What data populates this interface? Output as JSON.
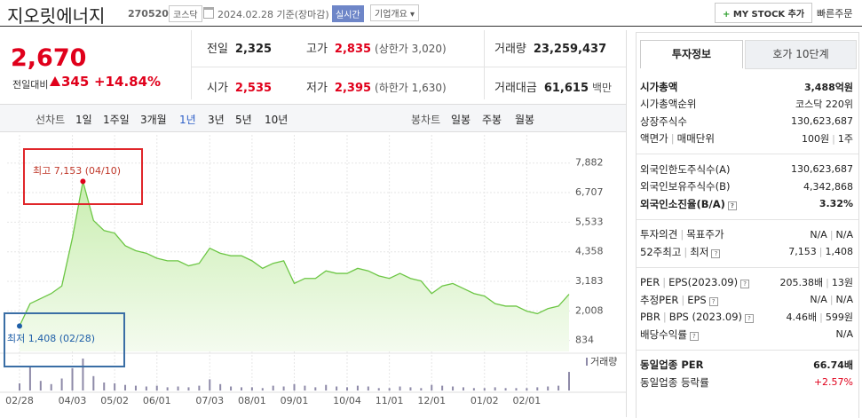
{
  "header": {
    "name": "지오릿에너지",
    "code": "270520",
    "market": "코스닥",
    "date": "2024.02.28 기준(장마감)",
    "realtime": "실시간",
    "company_info": "기업개요",
    "my_stock": "MY STOCK 추가",
    "quick_order": "빠른주문"
  },
  "price": {
    "current": "2,670",
    "change_label": "전일대비",
    "change": "345",
    "change_rate": "+14.84%"
  },
  "quotes": [
    {
      "label": "전일",
      "value": "2,325",
      "color": "#222222"
    },
    {
      "label": "고가",
      "value": "2,835",
      "note": "(상한가 3,020)",
      "color": "#e0001b"
    },
    {
      "label": "거래량",
      "value": "23,259,437",
      "color": "#222222"
    },
    {
      "label": "시가",
      "value": "2,535",
      "color": "#e0001b"
    },
    {
      "label": "저가",
      "value": "2,395",
      "note": "(하한가 1,630)",
      "color": "#e0001b"
    },
    {
      "label": "거래대금",
      "value": "61,615",
      "note": "백만",
      "color": "#222222"
    }
  ],
  "chart_tabs": {
    "line_label": "선차트",
    "periods": [
      "1일",
      "1주일",
      "3개월",
      "1년",
      "3년",
      "5년",
      "10년"
    ],
    "active": 3,
    "candle_label": "봉차트",
    "candles": [
      "일봉",
      "주봉",
      "월봉"
    ]
  },
  "chart": {
    "type": "line",
    "color": "#6cc644",
    "categories": [
      "02/28",
      null,
      null,
      null,
      null,
      "04/03",
      null,
      null,
      null,
      "05/02",
      null,
      null,
      null,
      "06/01",
      null,
      null,
      null,
      null,
      "07/03",
      null,
      null,
      null,
      "08/01",
      null,
      null,
      null,
      "09/01",
      null,
      null,
      null,
      null,
      "10/04",
      null,
      null,
      null,
      "11/01",
      null,
      null,
      null,
      "12/01",
      null,
      null,
      null,
      null,
      "01/02",
      null,
      null,
      null,
      "02/01",
      null,
      null,
      null,
      null
    ],
    "values": [
      1408,
      2300,
      2500,
      2700,
      3000,
      4900,
      7153,
      5600,
      5200,
      5100,
      4600,
      4400,
      4300,
      4100,
      4000,
      4000,
      3800,
      3900,
      4500,
      4300,
      4200,
      4200,
      4000,
      3700,
      3900,
      4000,
      3100,
      3300,
      3300,
      3600,
      3500,
      3500,
      3700,
      3600,
      3400,
      3300,
      3500,
      3300,
      3200,
      2700,
      3000,
      3100,
      2900,
      2700,
      2600,
      2300,
      2200,
      2200,
      2000,
      1900,
      2100,
      2200,
      2670
    ],
    "ylim": [
      400,
      9000
    ],
    "yticks": [
      {
        "value": 834,
        "label": "834"
      },
      {
        "value": 2008,
        "label": "2,008"
      },
      {
        "value": 3183,
        "label": "3,183"
      },
      {
        "value": 4358,
        "label": "4,358"
      },
      {
        "value": 5533,
        "label": "5,533"
      },
      {
        "value": 6707,
        "label": "6,707"
      },
      {
        "value": 7882,
        "label": "7,882"
      }
    ],
    "max_label": "최고 7,153 (04/10)",
    "min_label": "최저 1,408 (02/28)",
    "volume": {
      "name": "거래량",
      "color": "#8e8aa8",
      "values": [
        9000000,
        30000000,
        12000000,
        8000000,
        15000000,
        28000000,
        40000000,
        18000000,
        10000000,
        9000000,
        7000000,
        6000000,
        5000000,
        6000000,
        4000000,
        5000000,
        4000000,
        6000000,
        14000000,
        8000000,
        5000000,
        4000000,
        4000000,
        3000000,
        6000000,
        5000000,
        8000000,
        6000000,
        4000000,
        7000000,
        5000000,
        4000000,
        6000000,
        5000000,
        3000000,
        3000000,
        5000000,
        4000000,
        3000000,
        7000000,
        6000000,
        5000000,
        4000000,
        3000000,
        3000000,
        4000000,
        3000000,
        3000000,
        3000000,
        4000000,
        5000000,
        6000000,
        23259437
      ]
    }
  },
  "info": {
    "tabs": [
      "투자정보",
      "호가 10단계"
    ],
    "active_tab": 0,
    "sections": [
      [
        {
          "label": [
            "시가총액"
          ],
          "value": [
            "3,488억원"
          ],
          "bold": true
        },
        {
          "label": [
            "시가총액순위"
          ],
          "value": [
            "코스닥 220위"
          ]
        },
        {
          "label": [
            "상장주식수"
          ],
          "value": [
            "130,623,687"
          ]
        },
        {
          "label": [
            "액면가",
            "매매단위"
          ],
          "value": [
            "100원",
            "1주"
          ]
        }
      ],
      [
        {
          "label": [
            "외국인한도주식수(A)"
          ],
          "value": [
            "130,623,687"
          ]
        },
        {
          "label": [
            "외국인보유주식수(B)"
          ],
          "value": [
            "4,342,868"
          ]
        },
        {
          "label": [
            "외국인소진율(B/A)"
          ],
          "value": [
            "3.32%"
          ],
          "bold": true,
          "help": true
        }
      ],
      [
        {
          "label": [
            "투자의견",
            "목표주가"
          ],
          "value": [
            "N/A",
            "N/A"
          ]
        },
        {
          "label": [
            "52주최고",
            "최저"
          ],
          "value": [
            "7,153",
            "1,408"
          ],
          "help": true
        }
      ],
      [
        {
          "label": [
            "PER",
            "EPS(2023.09)"
          ],
          "value": [
            "205.38배",
            "13원"
          ],
          "help": true
        },
        {
          "label": [
            "추정PER",
            "EPS"
          ],
          "value": [
            "N/A",
            "N/A"
          ],
          "help": true
        },
        {
          "label": [
            "PBR",
            "BPS (2023.09)"
          ],
          "value": [
            "4.46배",
            "599원"
          ],
          "help": true
        },
        {
          "label": [
            "배당수익률"
          ],
          "value": [
            "N/A"
          ],
          "help": true
        }
      ],
      [
        {
          "label": [
            "동일업종 PER"
          ],
          "value": [
            "66.74배"
          ],
          "bold": true
        },
        {
          "label": [
            "동일업종 등락률"
          ],
          "value": [
            "+2.57%"
          ],
          "color": "#e0001b"
        }
      ]
    ]
  }
}
